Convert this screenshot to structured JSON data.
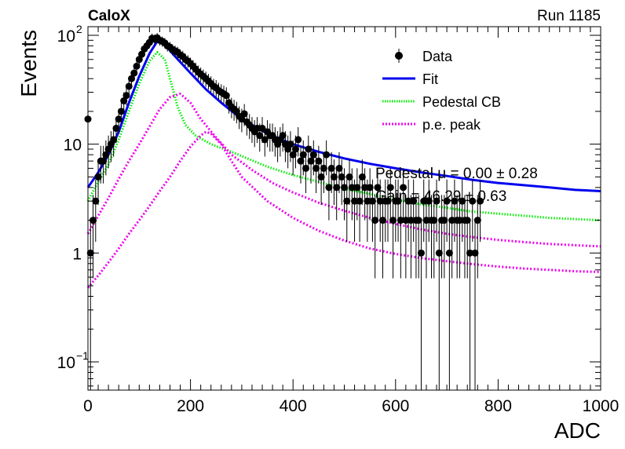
{
  "header": {
    "experiment": "CaloX",
    "run": "Run 1185"
  },
  "chart_data": {
    "type": "scatter",
    "xlabel": "ADC",
    "ylabel": "Events",
    "xlim": [
      0,
      1000
    ],
    "ylim": [
      0.055,
      120
    ],
    "yscale": "log",
    "grid": false,
    "legend_position": "top-right",
    "x_ticks": [
      "0",
      "200",
      "400",
      "600",
      "800",
      "1000"
    ],
    "y_ticks": [
      {
        "value": 0.1,
        "base": "10",
        "exp": "−1"
      },
      {
        "value": 1,
        "base": "1",
        "exp": ""
      },
      {
        "value": 10,
        "base": "10",
        "exp": ""
      },
      {
        "value": 100,
        "base": "10",
        "exp": "2"
      }
    ],
    "legend": [
      {
        "label": "Data",
        "kind": "marker",
        "color": "#000000"
      },
      {
        "label": "Fit",
        "kind": "line",
        "color": "#0000ee"
      },
      {
        "label": "Pedestal CB",
        "kind": "dotted",
        "color": "#00ee00"
      },
      {
        "label": "p.e. peak",
        "kind": "dotted",
        "color": "#ee00ee"
      }
    ],
    "annotations": [
      "Pedestal μ = 0.00 ± 0.28",
      "Gain = 46.29 ± 0.63"
    ],
    "series": [
      {
        "name": "Data",
        "kind": "points",
        "color": "#000000",
        "x": [
          0,
          5,
          10,
          15,
          20,
          25,
          30,
          35,
          40,
          45,
          50,
          55,
          60,
          65,
          70,
          75,
          80,
          85,
          90,
          95,
          100,
          105,
          110,
          115,
          120,
          125,
          130,
          135,
          140,
          145,
          150,
          155,
          160,
          165,
          170,
          175,
          180,
          185,
          190,
          195,
          200,
          205,
          210,
          215,
          220,
          225,
          230,
          235,
          240,
          245,
          250,
          255,
          260,
          265,
          270,
          275,
          280,
          285,
          290,
          295,
          300,
          305,
          310,
          315,
          320,
          325,
          330,
          335,
          340,
          345,
          350,
          355,
          360,
          365,
          370,
          375,
          380,
          385,
          390,
          395,
          400,
          405,
          410,
          415,
          420,
          425,
          430,
          435,
          440,
          445,
          450,
          455,
          460,
          465,
          470,
          475,
          480,
          485,
          490,
          495,
          500,
          505,
          510,
          515,
          520,
          525,
          530,
          535,
          540,
          545,
          550,
          555,
          560,
          565,
          570,
          575,
          580,
          585,
          590,
          595,
          600,
          605,
          610,
          615,
          620,
          625,
          630,
          635,
          640,
          645,
          650,
          655,
          660,
          665,
          670,
          675,
          680,
          685,
          690,
          695,
          700,
          705,
          710,
          715,
          720,
          725,
          730,
          735,
          740,
          745,
          750,
          755,
          760,
          765
        ],
        "y": [
          17,
          1,
          2,
          3,
          5,
          7,
          7,
          8,
          9,
          10,
          11,
          14,
          17,
          20,
          25,
          28,
          34,
          40,
          45,
          52,
          60,
          67,
          75,
          80,
          86,
          94,
          92,
          95,
          90,
          88,
          85,
          80,
          78,
          74,
          72,
          70,
          66,
          64,
          60,
          58,
          55,
          52,
          49,
          46,
          44,
          42,
          40,
          38,
          36,
          34,
          33,
          31,
          30,
          29,
          28,
          24,
          22,
          21,
          20,
          18,
          17,
          19,
          16,
          15,
          14,
          13,
          14,
          12,
          14,
          11,
          13,
          12,
          12,
          11,
          10,
          11,
          12,
          10,
          9,
          10,
          8,
          9,
          11,
          7,
          8,
          6,
          9,
          7,
          8,
          6,
          7,
          5,
          6,
          8,
          4,
          6,
          5,
          4,
          6,
          5,
          4,
          3,
          5,
          4,
          3,
          4,
          3,
          5,
          4,
          3,
          4,
          3,
          2,
          4,
          3,
          2,
          3,
          3,
          4,
          2,
          3,
          3,
          2,
          4,
          2,
          3,
          2,
          3,
          2,
          2,
          1,
          3,
          2,
          3,
          2,
          2,
          3,
          1,
          2,
          2,
          3,
          1,
          2,
          3,
          2,
          2,
          3,
          2,
          2,
          1,
          3,
          1,
          2,
          3
        ]
      },
      {
        "name": "Fit",
        "kind": "line",
        "color": "#0000ee",
        "x": [
          0,
          20,
          40,
          60,
          80,
          100,
          120,
          135,
          150,
          170,
          200,
          230,
          260,
          300,
          350,
          400,
          450,
          500,
          550,
          600,
          650,
          700,
          750,
          800,
          850,
          900,
          950,
          1000
        ],
        "y": [
          4,
          5.5,
          8,
          13,
          24,
          42,
          68,
          88,
          82,
          64,
          45,
          32,
          24,
          17,
          12.5,
          10,
          8.5,
          7.4,
          6.6,
          6.0,
          5.5,
          5.1,
          4.7,
          4.4,
          4.2,
          4.0,
          3.8,
          3.7
        ]
      },
      {
        "name": "Pedestal CB",
        "kind": "dotted",
        "color": "#00ee00",
        "x": [
          0,
          20,
          40,
          60,
          80,
          100,
          120,
          135,
          150,
          160,
          175,
          190,
          210,
          240,
          280,
          350,
          400,
          450,
          500,
          550,
          600,
          650,
          700,
          750,
          800,
          850,
          900,
          950,
          1000
        ],
        "y": [
          3,
          4.5,
          6.5,
          11,
          20,
          36,
          58,
          70,
          60,
          40,
          22,
          15,
          12,
          10,
          8.5,
          6.2,
          5.2,
          4.5,
          3.9,
          3.5,
          3.1,
          2.8,
          2.6,
          2.4,
          2.3,
          2.2,
          2.1,
          2.05,
          2.0
        ]
      },
      {
        "name": "p.e. peak",
        "kind": "dotted",
        "color": "#ee00ee",
        "x": [
          0,
          20,
          40,
          60,
          80,
          100,
          120,
          140,
          160,
          180,
          200,
          220,
          250,
          280,
          320,
          360,
          400,
          450,
          500,
          550,
          600,
          650,
          700,
          750,
          800,
          850,
          900,
          950,
          1000
        ],
        "y": [
          1.5,
          2.2,
          3.2,
          4.8,
          7.0,
          10.0,
          14.5,
          21,
          27,
          29,
          24,
          17,
          11.5,
          8.0,
          5.8,
          4.4,
          3.6,
          2.9,
          2.45,
          2.1,
          1.85,
          1.65,
          1.5,
          1.4,
          1.32,
          1.26,
          1.21,
          1.18,
          1.15
        ]
      },
      {
        "name": "p.e. peak",
        "kind": "dotted",
        "color": "#ee00ee",
        "x": [
          0,
          20,
          40,
          60,
          80,
          100,
          120,
          140,
          160,
          180,
          200,
          220,
          230,
          240,
          260,
          280,
          300,
          350,
          400,
          450,
          500,
          550,
          600,
          650,
          700,
          750,
          800,
          850,
          900,
          950,
          1000
        ],
        "y": [
          0.48,
          0.62,
          0.82,
          1.1,
          1.5,
          2.0,
          2.7,
          3.7,
          5.0,
          7.0,
          9.5,
          12.0,
          13.0,
          12.5,
          10.0,
          7.0,
          5.0,
          3.0,
          2.1,
          1.6,
          1.3,
          1.1,
          0.98,
          0.9,
          0.84,
          0.79,
          0.75,
          0.72,
          0.7,
          0.68,
          0.67
        ]
      }
    ]
  }
}
